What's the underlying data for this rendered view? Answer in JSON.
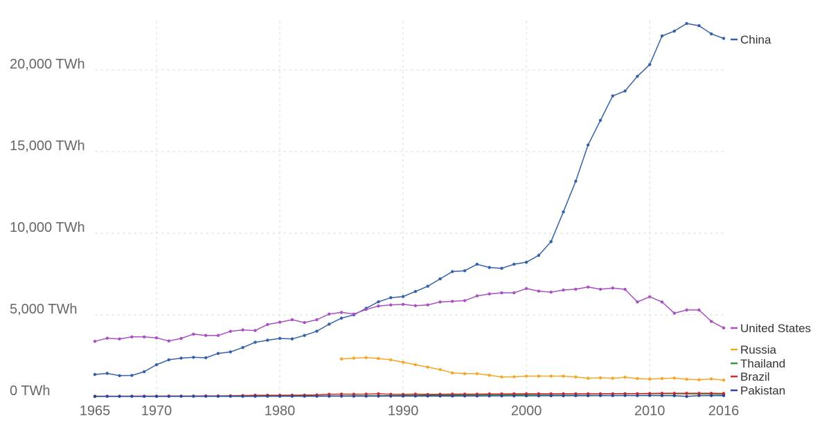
{
  "chart_data": {
    "type": "line",
    "xlim": [
      1965,
      2016
    ],
    "ylim": [
      0,
      23000
    ],
    "y_ticks": [
      {
        "value": 0,
        "label": "0 TWh"
      },
      {
        "value": 5000,
        "label": "5,000 TWh"
      },
      {
        "value": 10000,
        "label": "10,000 TWh"
      },
      {
        "value": 15000,
        "label": "15,000 TWh"
      },
      {
        "value": 20000,
        "label": "20,000 TWh"
      }
    ],
    "x_ticks": [
      {
        "value": 1965,
        "label": "1965"
      },
      {
        "value": 1970,
        "label": "1970"
      },
      {
        "value": 1980,
        "label": "1980"
      },
      {
        "value": 1990,
        "label": "1990"
      },
      {
        "value": 2000,
        "label": "2000"
      },
      {
        "value": 2010,
        "label": "2010"
      },
      {
        "value": 2016,
        "label": "2016"
      }
    ],
    "grid": true,
    "legend_placement": "right",
    "series": [
      {
        "name": "China",
        "color": "#3360a9",
        "x": [
          1965,
          1966,
          1967,
          1968,
          1969,
          1970,
          1971,
          1972,
          1973,
          1974,
          1975,
          1976,
          1977,
          1978,
          1979,
          1980,
          1981,
          1982,
          1983,
          1984,
          1985,
          1986,
          1987,
          1988,
          1989,
          1990,
          1991,
          1992,
          1993,
          1994,
          1995,
          1996,
          1997,
          1998,
          1999,
          2000,
          2001,
          2002,
          2003,
          2004,
          2005,
          2006,
          2007,
          2008,
          2009,
          2010,
          2011,
          2012,
          2013,
          2014,
          2015,
          2016
        ],
        "values": [
          1350,
          1420,
          1280,
          1290,
          1520,
          1950,
          2250,
          2350,
          2400,
          2370,
          2640,
          2730,
          3000,
          3320,
          3450,
          3560,
          3530,
          3740,
          4000,
          4430,
          4800,
          5000,
          5400,
          5800,
          6050,
          6120,
          6430,
          6750,
          7200,
          7650,
          7700,
          8100,
          7900,
          7850,
          8100,
          8220,
          8640,
          9480,
          11300,
          13180,
          15400,
          16900,
          18400,
          18700,
          19600,
          20320,
          22070,
          22370,
          22830,
          22700,
          22200,
          21920
        ]
      },
      {
        "name": "United States",
        "color": "#a94fc0",
        "x": [
          1965,
          1966,
          1967,
          1968,
          1969,
          1970,
          1971,
          1972,
          1973,
          1974,
          1975,
          1976,
          1977,
          1978,
          1979,
          1980,
          1981,
          1982,
          1983,
          1984,
          1985,
          1986,
          1987,
          1988,
          1989,
          1990,
          1991,
          1992,
          1993,
          1994,
          1995,
          1996,
          1997,
          1998,
          1999,
          2000,
          2001,
          2002,
          2003,
          2004,
          2005,
          2006,
          2007,
          2008,
          2009,
          2010,
          2011,
          2012,
          2013,
          2014,
          2015,
          2016
        ],
        "values": [
          3380,
          3570,
          3530,
          3650,
          3650,
          3590,
          3400,
          3560,
          3820,
          3740,
          3740,
          3990,
          4080,
          4040,
          4410,
          4550,
          4700,
          4530,
          4700,
          5050,
          5150,
          5050,
          5330,
          5540,
          5610,
          5640,
          5560,
          5610,
          5790,
          5830,
          5870,
          6160,
          6280,
          6350,
          6350,
          6610,
          6450,
          6390,
          6520,
          6570,
          6700,
          6570,
          6640,
          6560,
          5790,
          6110,
          5790,
          5100,
          5300,
          5300,
          4600,
          4200
        ]
      },
      {
        "name": "Russia",
        "color": "#f5a623",
        "x": [
          1985,
          1986,
          1987,
          1988,
          1989,
          1990,
          1991,
          1992,
          1993,
          1994,
          1995,
          1996,
          1997,
          1998,
          1999,
          2000,
          2001,
          2002,
          2003,
          2004,
          2005,
          2006,
          2007,
          2008,
          2009,
          2010,
          2011,
          2012,
          2013,
          2014,
          2015,
          2016
        ],
        "values": [
          2300,
          2350,
          2380,
          2330,
          2250,
          2100,
          1950,
          1800,
          1650,
          1450,
          1400,
          1400,
          1300,
          1200,
          1210,
          1250,
          1250,
          1250,
          1250,
          1200,
          1120,
          1150,
          1120,
          1180,
          1100,
          1070,
          1100,
          1130,
          1060,
          1030,
          1080,
          1010
        ]
      },
      {
        "name": "Thailand",
        "color": "#2f9a3a",
        "x": [
          1965,
          1970,
          1975,
          1980,
          1985,
          1990,
          1995,
          2000,
          2005,
          2008,
          2010,
          2012,
          2014,
          2016
        ],
        "values": [
          5,
          10,
          20,
          30,
          40,
          60,
          100,
          120,
          150,
          170,
          170,
          170,
          160,
          140
        ]
      },
      {
        "name": "Brazil",
        "color": "#d62728",
        "x": [
          1965,
          1966,
          1967,
          1968,
          1969,
          1970,
          1971,
          1972,
          1973,
          1974,
          1975,
          1976,
          1977,
          1978,
          1979,
          1980,
          1981,
          1982,
          1983,
          1984,
          1985,
          1986,
          1987,
          1988,
          1989,
          1990,
          1991,
          1992,
          1993,
          1994,
          1995,
          1996,
          1997,
          1998,
          1999,
          2000,
          2001,
          2002,
          2003,
          2004,
          2005,
          2006,
          2007,
          2008,
          2009,
          2010,
          2011,
          2012,
          2013,
          2014,
          2015,
          2016
        ],
        "values": [
          20,
          20,
          22,
          25,
          25,
          25,
          28,
          30,
          30,
          40,
          40,
          45,
          60,
          80,
          80,
          80,
          85,
          90,
          100,
          140,
          150,
          145,
          150,
          170,
          140,
          130,
          150,
          130,
          140,
          150,
          150,
          150,
          160,
          160,
          170,
          170,
          170,
          170,
          170,
          170,
          170,
          170,
          175,
          180,
          180,
          190,
          200,
          200,
          200,
          200,
          200,
          190
        ]
      },
      {
        "name": "Pakistan",
        "color": "#27489a",
        "x": [
          1965,
          1966,
          1967,
          1968,
          1969,
          1970,
          1971,
          1972,
          1973,
          1974,
          1975,
          1976,
          1977,
          1978,
          1979,
          1980,
          1981,
          1982,
          1983,
          1984,
          1985,
          1986,
          1987,
          1988,
          1989,
          1990,
          1991,
          1992,
          1993,
          1994,
          1995,
          1996,
          1997,
          1998,
          1999,
          2000,
          2001,
          2002,
          2003,
          2004,
          2005,
          2006,
          2007,
          2008,
          2009,
          2010,
          2011,
          2012,
          2013,
          2014,
          2015,
          2016
        ],
        "values": [
          10,
          12,
          12,
          13,
          14,
          14,
          14,
          15,
          15,
          16,
          17,
          18,
          18,
          19,
          20,
          20,
          20,
          22,
          22,
          24,
          25,
          26,
          27,
          28,
          30,
          30,
          32,
          33,
          35,
          36,
          38,
          40,
          42,
          44,
          45,
          46,
          48,
          50,
          52,
          54,
          56,
          58,
          60,
          62,
          60,
          62,
          60,
          55,
          10,
          60,
          60,
          60
        ]
      }
    ],
    "legend": [
      {
        "name": "China",
        "color": "#3360a9"
      },
      {
        "name": "United States",
        "color": "#a94fc0"
      },
      {
        "name": "Russia",
        "color": "#f5a623"
      },
      {
        "name": "Thailand",
        "color": "#2f9a3a"
      },
      {
        "name": "Brazil",
        "color": "#d62728"
      },
      {
        "name": "Pakistan",
        "color": "#27489a"
      }
    ]
  }
}
